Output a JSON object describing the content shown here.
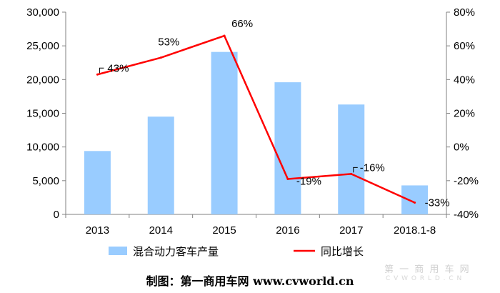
{
  "chart_data": {
    "type": "bar+line",
    "categories": [
      "2013",
      "2014",
      "2015",
      "2016",
      "2017",
      "2018.1-8"
    ],
    "series": [
      {
        "name": "混合动力客车产量",
        "type": "bar",
        "axis": "left",
        "color": "#99ccff",
        "values": [
          9400,
          14500,
          24100,
          19600,
          16300,
          4300
        ]
      },
      {
        "name": "同比增长",
        "type": "line",
        "axis": "right",
        "color": "#ff0000",
        "values": [
          43,
          53,
          66,
          -19,
          -16,
          -33
        ],
        "labels": [
          "43%",
          "53%",
          "66%",
          "-19%",
          "-16%",
          "-33%"
        ]
      }
    ],
    "left_axis": {
      "ylim": [
        0,
        30000
      ],
      "ticks": [
        0,
        5000,
        10000,
        15000,
        20000,
        25000,
        30000
      ],
      "tick_labels": [
        "0",
        "5,000",
        "10,000",
        "15,000",
        "20,000",
        "25,000",
        "30,000"
      ]
    },
    "right_axis": {
      "ylim": [
        -40,
        80
      ],
      "ticks": [
        -40,
        -20,
        0,
        20,
        40,
        60,
        80
      ],
      "tick_labels": [
        "-40%",
        "-20%",
        "0%",
        "20%",
        "40%",
        "60%",
        "80%"
      ]
    },
    "grid": false,
    "legend_position": "bottom"
  },
  "credit": "制图：第一商用车网 www.cvworld.cn",
  "watermark": {
    "title": "第 一 商 用 车 网",
    "subtitle": "C V W O R L D . C N"
  }
}
